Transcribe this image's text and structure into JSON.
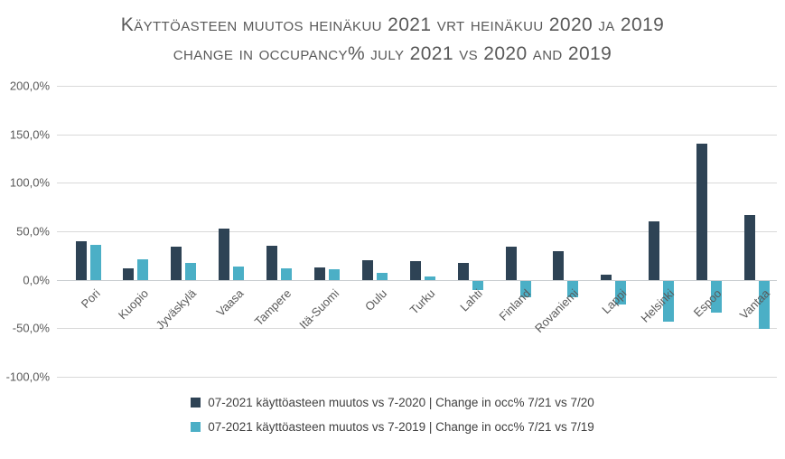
{
  "title": {
    "line1": "Käyttöasteen muutos heinäkuu 2021 vrt heinäkuu 2020 ja 2019",
    "line2": "change in occupancy% july 2021 vs 2020 and 2019"
  },
  "colors": {
    "series1": "#2e4355",
    "series2": "#4bafc6",
    "gridline": "#d9d9d9",
    "zero_axis_line": "#c8cccf",
    "title_text": "#595959",
    "axis_text": "#595959",
    "legend_text": "#404040",
    "background": "#ffffff"
  },
  "chart_data": {
    "type": "bar",
    "title": "Käyttöasteen muutos heinäkuu 2021 vrt heinäkuu 2020 ja 2019 | change in occupancy% july 2021 vs 2020 and 2019",
    "categories": [
      "Pori",
      "Kuopio",
      "Jyväskylä",
      "Vaasa",
      "Tampere",
      "Itä-Suomi",
      "Oulu",
      "Turku",
      "Lahti",
      "Finland",
      "Rovaniemi",
      "Lappi",
      "Helsinki",
      "Espoo",
      "Vantaa"
    ],
    "series": [
      {
        "name": "07-2021 käyttöasteen muutos vs 7-2020 | Change in occ% 7/21 vs 7/20",
        "color": "#2e4355",
        "values": [
          40,
          12,
          34,
          53,
          35,
          13,
          20,
          19,
          17,
          34,
          30,
          5,
          60,
          140,
          67
        ]
      },
      {
        "name": "07-2021 käyttöasteen muutos vs 7-2019 | Change in occ% 7/21 vs 7/19",
        "color": "#4bafc6",
        "values": [
          36,
          21,
          17,
          14,
          12,
          11,
          7,
          3,
          -10,
          -17,
          -17,
          -25,
          -42,
          -33,
          -50
        ]
      }
    ],
    "xlabel": "",
    "ylabel": "",
    "values_unit": "%",
    "ylim": [
      -100,
      200
    ],
    "yticks": [
      {
        "value": 200,
        "label": "200,0%"
      },
      {
        "value": 150,
        "label": "150,0%"
      },
      {
        "value": 100,
        "label": "100,0%"
      },
      {
        "value": 50,
        "label": "50,0%"
      },
      {
        "value": 0,
        "label": "0,0%"
      },
      {
        "value": -50,
        "label": "-50,0%"
      },
      {
        "value": -100,
        "label": "-100,0%"
      }
    ],
    "grid": true,
    "legend_position": "bottom"
  }
}
